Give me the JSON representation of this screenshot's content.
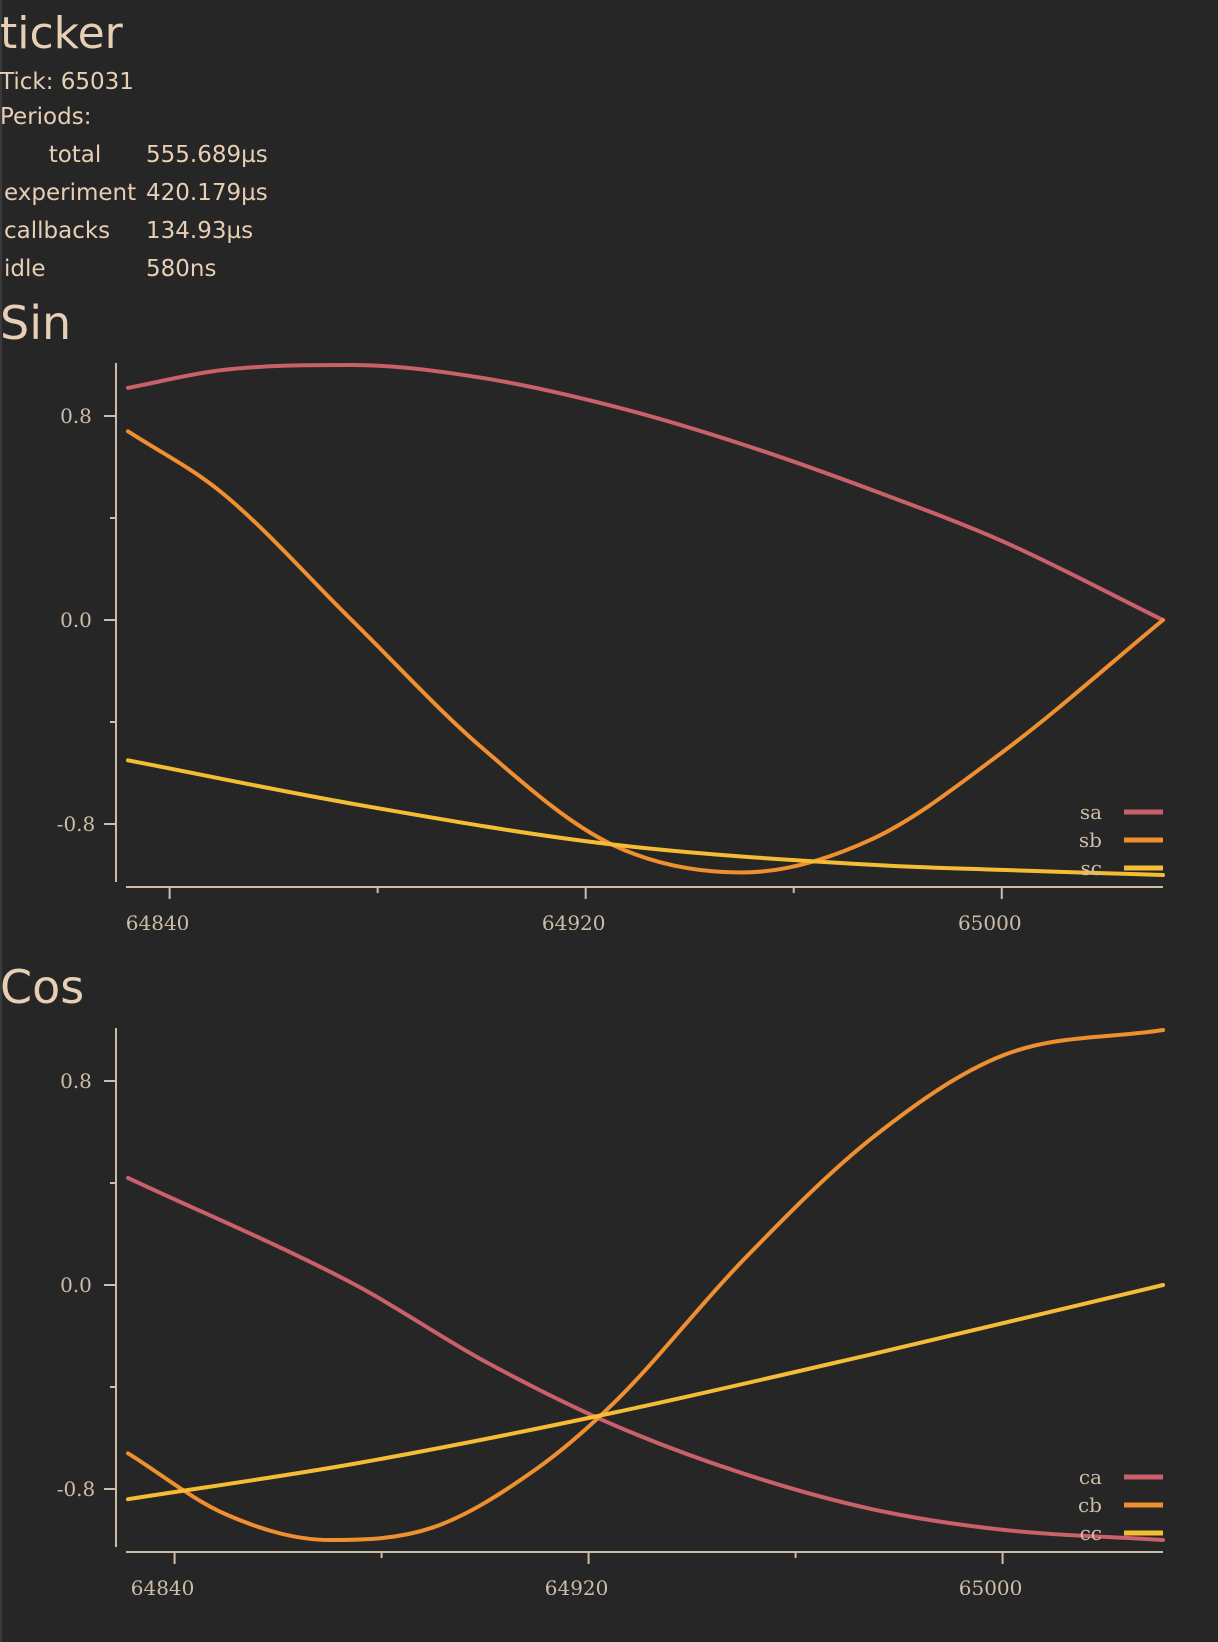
{
  "app": {
    "title": "ticker"
  },
  "status": {
    "tick_line": "Tick: 65031",
    "periods_label": "Periods:"
  },
  "periods": [
    {
      "key": "total",
      "value": "555.689µs"
    },
    {
      "key": "experiment",
      "value": "420.179µs"
    },
    {
      "key": "callbacks",
      "value": "134.93µs"
    },
    {
      "key": "idle",
      "value": "580ns"
    }
  ],
  "colors": {
    "background": "#262626",
    "text": "#e6cfb4",
    "axis": "#cdbca8",
    "series_a": "#c9606a",
    "series_b": "#ef8f2f",
    "series_c": "#f5bc35"
  },
  "chart_data": [
    {
      "type": "line",
      "title": "Sin",
      "xlabel": "",
      "ylabel": "",
      "xlim": [
        64832,
        65031
      ],
      "ylim": [
        -1.0,
        1.0
      ],
      "x_ticks": [
        "64840",
        "64920",
        "65000"
      ],
      "y_ticks": [
        "0.8",
        "0.0",
        "-0.8"
      ],
      "grid": false,
      "legend": "bottom-right",
      "series": [
        {
          "name": "sa",
          "color": "#c9606a",
          "x": [
            64832,
            64850,
            64875,
            64900,
            64925,
            64950,
            64975,
            65000,
            65031
          ],
          "y": [
            0.91,
            0.98,
            1.0,
            0.95,
            0.84,
            0.69,
            0.51,
            0.31,
            0.0
          ]
        },
        {
          "name": "sb",
          "color": "#ef8f2f",
          "x": [
            64832,
            64850,
            64875,
            64900,
            64925,
            64950,
            64975,
            65000,
            65031
          ],
          "y": [
            0.74,
            0.5,
            0.0,
            -0.5,
            -0.88,
            -0.99,
            -0.86,
            -0.52,
            0.0
          ]
        },
        {
          "name": "sc",
          "color": "#f5bc35",
          "x": [
            64832,
            64875,
            64925,
            64975,
            65000,
            65031
          ],
          "y": [
            -0.55,
            -0.72,
            -0.88,
            -0.96,
            -0.98,
            -1.0
          ]
        }
      ]
    },
    {
      "type": "line",
      "title": "Cos",
      "xlabel": "",
      "ylabel": "",
      "xlim": [
        64831,
        65031
      ],
      "ylim": [
        -1.0,
        1.0
      ],
      "x_ticks": [
        "64840",
        "64920",
        "65000"
      ],
      "y_ticks": [
        "0.8",
        "0.0",
        "-0.8"
      ],
      "grid": false,
      "legend": "bottom-right",
      "series": [
        {
          "name": "ca",
          "color": "#c9606a",
          "x": [
            64831,
            64875,
            64900,
            64925,
            64950,
            64975,
            65000,
            65031
          ],
          "y": [
            0.42,
            0.0,
            -0.3,
            -0.55,
            -0.74,
            -0.88,
            -0.96,
            -1.0
          ]
        },
        {
          "name": "cb",
          "color": "#ef8f2f",
          "x": [
            64831,
            64850,
            64870,
            64890,
            64910,
            64925,
            64950,
            64975,
            65000,
            65031
          ],
          "y": [
            -0.66,
            -0.9,
            -1.0,
            -0.95,
            -0.72,
            -0.46,
            0.1,
            0.58,
            0.9,
            1.0
          ]
        },
        {
          "name": "cc",
          "color": "#f5bc35",
          "x": [
            64831,
            64875,
            64925,
            64975,
            65031
          ],
          "y": [
            -0.84,
            -0.7,
            -0.5,
            -0.27,
            0.0
          ]
        }
      ]
    }
  ]
}
